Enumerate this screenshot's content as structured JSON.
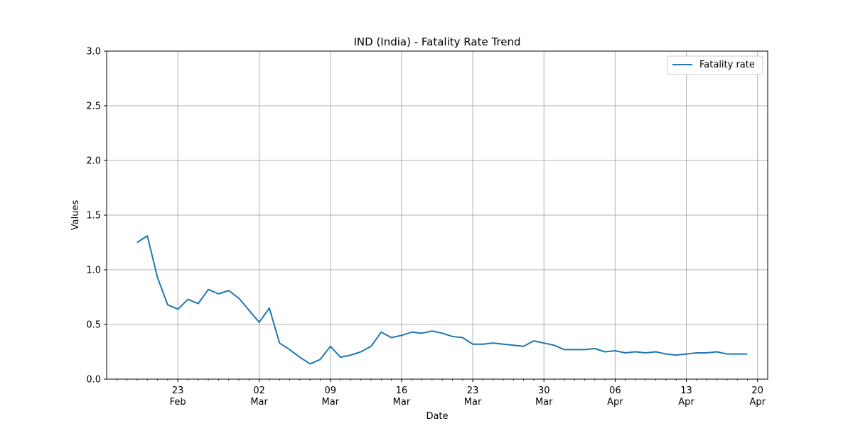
{
  "chart_data": {
    "type": "line",
    "title": "IND (India) - Fatality Rate Trend",
    "xlabel": "Date",
    "ylabel": "Values",
    "ylim": [
      0,
      3.0
    ],
    "xlim": [
      "2020-02-16",
      "2020-04-21"
    ],
    "grid": true,
    "legend_position": "top-right",
    "x_ticks": [
      {
        "date": "2020-02-23",
        "line1": "23",
        "line2": "Feb"
      },
      {
        "date": "2020-03-02",
        "line1": "02",
        "line2": "Mar"
      },
      {
        "date": "2020-03-09",
        "line1": "09",
        "line2": "Mar"
      },
      {
        "date": "2020-03-16",
        "line1": "16",
        "line2": "Mar"
      },
      {
        "date": "2020-03-23",
        "line1": "23",
        "line2": "Mar"
      },
      {
        "date": "2020-03-30",
        "line1": "30",
        "line2": "Mar"
      },
      {
        "date": "2020-04-06",
        "line1": "06",
        "line2": "Apr"
      },
      {
        "date": "2020-04-13",
        "line1": "13",
        "line2": "Apr"
      },
      {
        "date": "2020-04-20",
        "line1": "20",
        "line2": "Apr"
      }
    ],
    "y_ticks": [
      "0.0",
      "0.5",
      "1.0",
      "1.5",
      "2.0",
      "2.5",
      "3.0"
    ],
    "series": [
      {
        "name": "Fatality rate",
        "color": "#1f77b4",
        "x": [
          "2020-02-19",
          "2020-02-20",
          "2020-02-21",
          "2020-02-22",
          "2020-02-23",
          "2020-02-24",
          "2020-02-25",
          "2020-02-26",
          "2020-02-27",
          "2020-02-28",
          "2020-02-29",
          "2020-03-01",
          "2020-03-02",
          "2020-03-03",
          "2020-03-04",
          "2020-03-05",
          "2020-03-06",
          "2020-03-07",
          "2020-03-08",
          "2020-03-09",
          "2020-03-10",
          "2020-03-11",
          "2020-03-12",
          "2020-03-13",
          "2020-03-14",
          "2020-03-15",
          "2020-03-16",
          "2020-03-17",
          "2020-03-18",
          "2020-03-19",
          "2020-03-20",
          "2020-03-21",
          "2020-03-22",
          "2020-03-23",
          "2020-03-24",
          "2020-03-25",
          "2020-03-26",
          "2020-03-27",
          "2020-03-28",
          "2020-03-29",
          "2020-03-30",
          "2020-03-31",
          "2020-04-01",
          "2020-04-02",
          "2020-04-03",
          "2020-04-04",
          "2020-04-05",
          "2020-04-06",
          "2020-04-07",
          "2020-04-08",
          "2020-04-09",
          "2020-04-10",
          "2020-04-11",
          "2020-04-12",
          "2020-04-13",
          "2020-04-14",
          "2020-04-15",
          "2020-04-16",
          "2020-04-17",
          "2020-04-18",
          "2020-04-19"
        ],
        "values": [
          1.25,
          1.31,
          0.93,
          0.68,
          0.64,
          0.73,
          0.69,
          0.82,
          0.78,
          0.81,
          0.74,
          0.63,
          0.52,
          0.65,
          0.33,
          0.27,
          0.2,
          0.14,
          0.18,
          0.3,
          0.2,
          0.22,
          0.25,
          0.3,
          0.43,
          0.38,
          0.4,
          0.43,
          0.42,
          0.44,
          0.42,
          0.39,
          0.38,
          0.32,
          0.32,
          0.33,
          0.32,
          0.31,
          0.3,
          0.35,
          0.33,
          0.31,
          0.27,
          0.27,
          0.27,
          0.28,
          0.25,
          0.26,
          0.24,
          0.25,
          0.24,
          0.25,
          0.23,
          0.22,
          0.23,
          0.24,
          0.24,
          0.25,
          0.23,
          0.23,
          0.23
        ]
      }
    ]
  }
}
